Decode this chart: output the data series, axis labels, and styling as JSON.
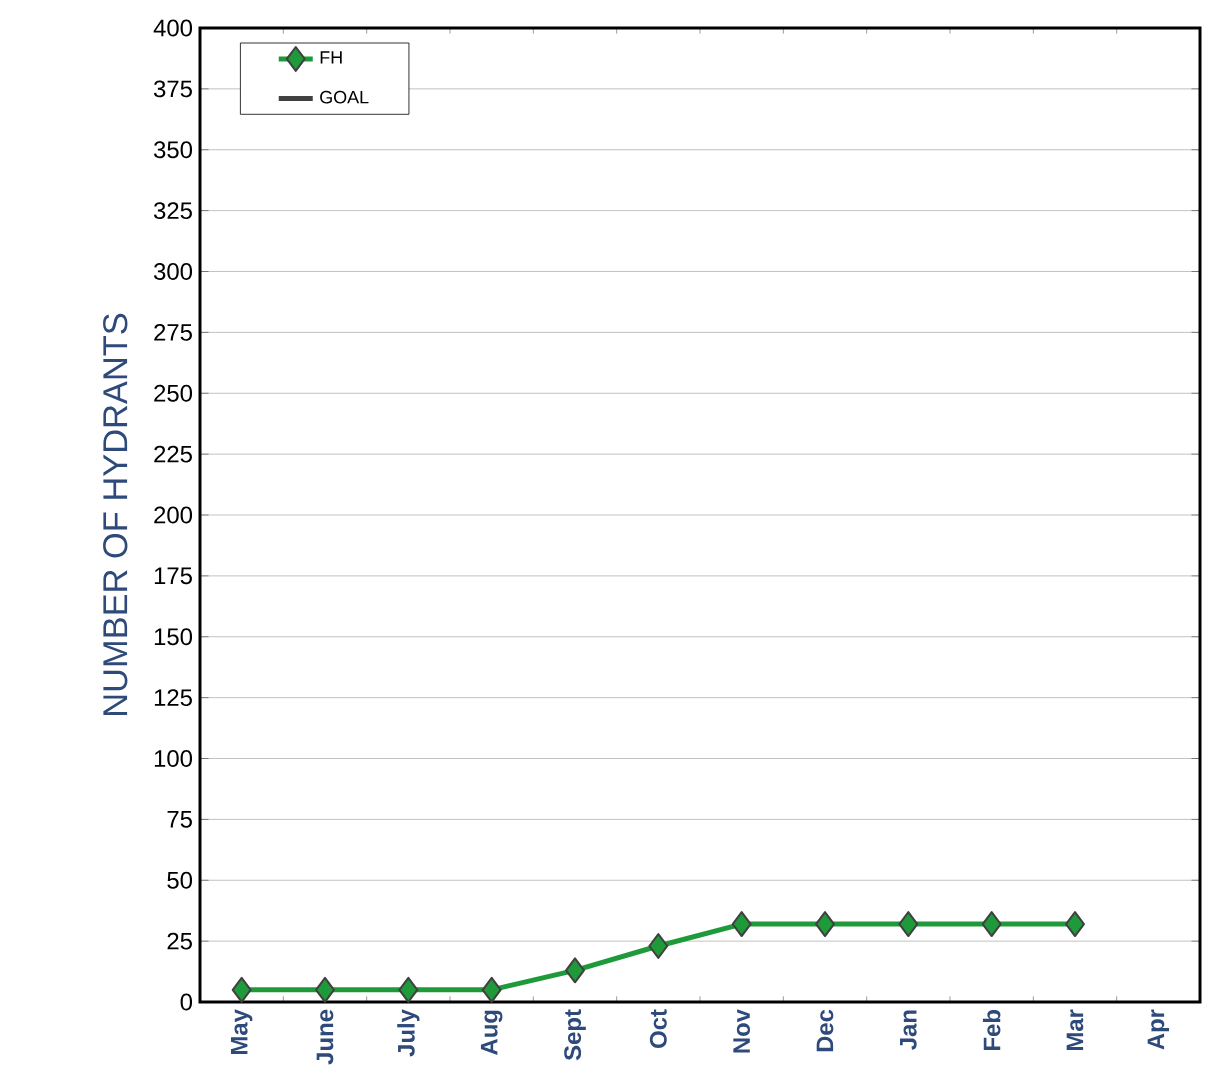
{
  "chart_data": {
    "type": "line",
    "ylabel": "NUMBER OF HYDRANTS",
    "categories": [
      "May",
      "June",
      "July",
      "Aug",
      "Sept",
      "Oct",
      "Nov",
      "Dec",
      "Jan",
      "Feb",
      "Mar",
      "Apr"
    ],
    "series": [
      {
        "name": "FH",
        "color": "#1e9a3a",
        "marker": "diamond",
        "values": [
          5,
          5,
          5,
          5,
          13,
          23,
          32,
          32,
          32,
          32,
          32,
          null
        ]
      },
      {
        "name": "GOAL",
        "color": "#404040",
        "marker": "none",
        "values": [
          null,
          null,
          null,
          null,
          null,
          null,
          null,
          null,
          null,
          null,
          null,
          null
        ]
      }
    ],
    "ylim": [
      0,
      400
    ],
    "yticks": [
      0,
      25,
      50,
      75,
      100,
      125,
      150,
      175,
      200,
      225,
      250,
      275,
      300,
      325,
      350,
      375,
      400
    ],
    "grid": "y",
    "legend": "top left"
  }
}
